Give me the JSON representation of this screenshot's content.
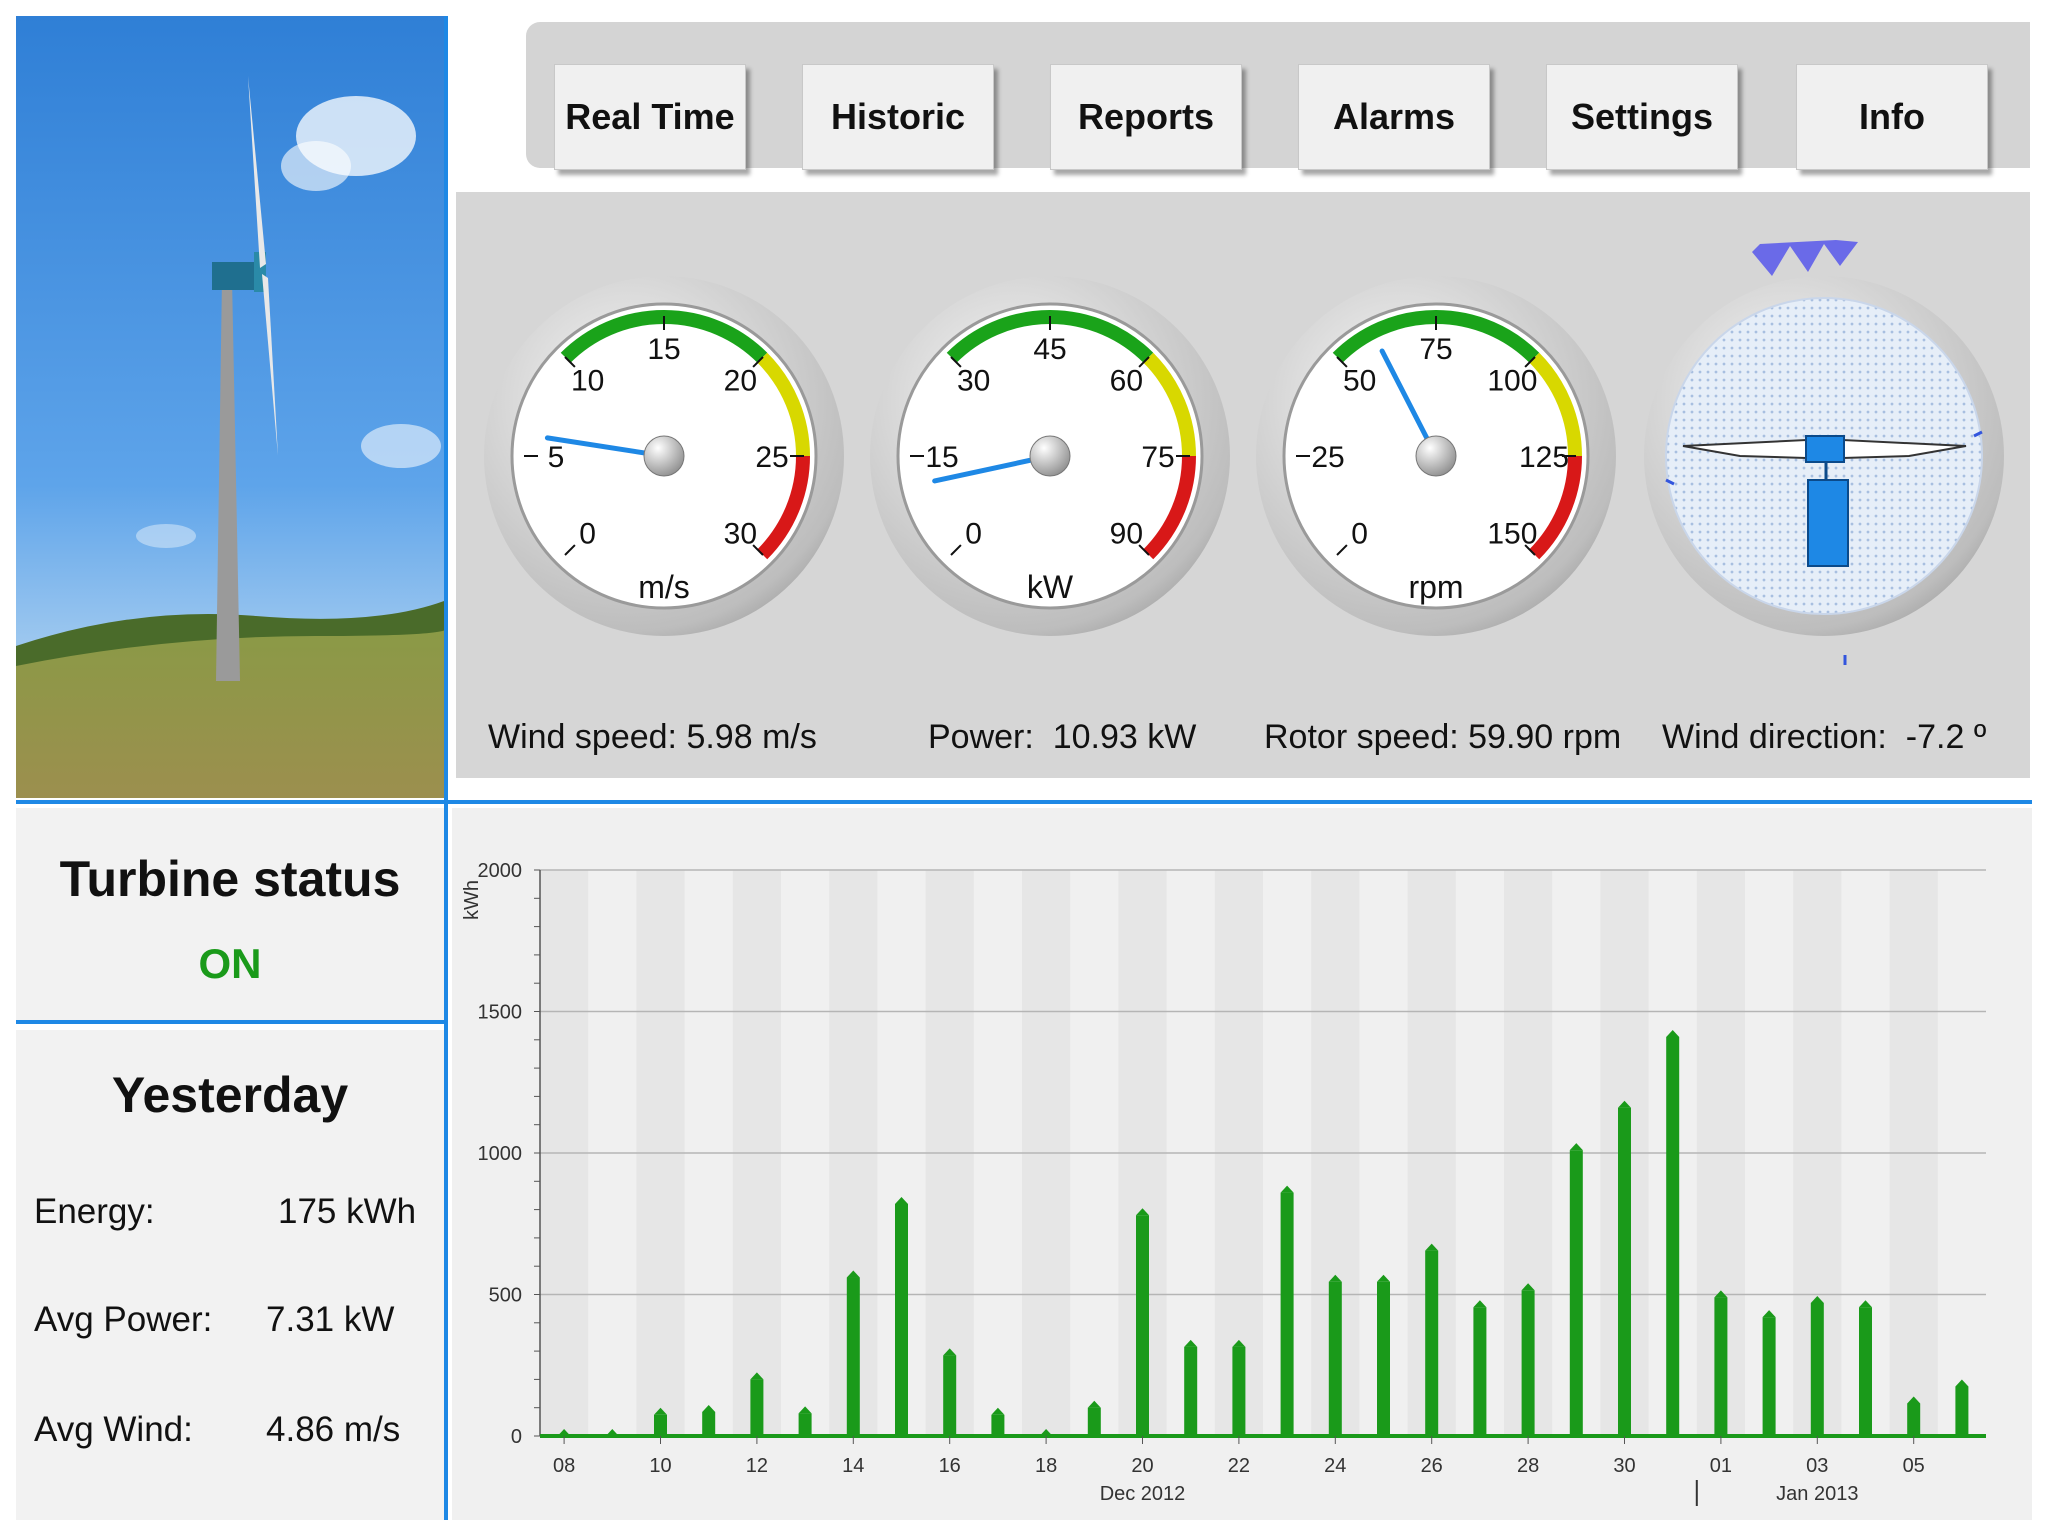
{
  "nav": {
    "items": [
      "Real Time",
      "Historic",
      "Reports",
      "Alarms",
      "Settings",
      "Info"
    ]
  },
  "gauges": {
    "wind": {
      "unit": "m/s",
      "ticks": [
        "0",
        "5",
        "10",
        "15",
        "20",
        "25",
        "30"
      ],
      "value": 5.98,
      "min": 0,
      "max": 30
    },
    "power": {
      "unit": "kW",
      "ticks": [
        "0",
        "15",
        "30",
        "45",
        "60",
        "75",
        "90"
      ],
      "value": 10.93,
      "min": 0,
      "max": 90
    },
    "rotor": {
      "unit": "rpm",
      "ticks": [
        "0",
        "25",
        "50",
        "75",
        "100",
        "125",
        "150"
      ],
      "value": 59.9,
      "min": 0,
      "max": 150
    },
    "direction": {
      "value_deg": -7.2
    }
  },
  "readouts": {
    "wind_label": "Wind speed:",
    "wind_value": "5.98 m/s",
    "power_label": "Power:",
    "power_value": "10.93 kW",
    "rotor_label": "Rotor speed:",
    "rotor_value": "59.90 rpm",
    "direction_label": "Wind direction:",
    "direction_value": "-7.2 º"
  },
  "status": {
    "title": "Turbine status",
    "state": "ON",
    "state_color": "#1a9a1a"
  },
  "yesterday": {
    "title": "Yesterday",
    "energy_label": "Energy:",
    "energy_value": "175 kWh",
    "avg_power_label": "Avg Power:",
    "avg_power_value": "7.31 kW",
    "avg_wind_label": "Avg Wind:",
    "avg_wind_value": "4.86 m/s"
  },
  "chart_data": {
    "type": "bar",
    "ylabel": "kWh",
    "ylim": [
      0,
      2000
    ],
    "yticks": [
      "0",
      "500",
      "1000",
      "1500",
      "2000"
    ],
    "x_tick_labels": [
      "08",
      "10",
      "12",
      "14",
      "16",
      "18",
      "20",
      "22",
      "24",
      "26",
      "28",
      "30",
      "01",
      "03",
      "05"
    ],
    "x_group_labels": [
      "Dec 2012",
      "Jan 2013"
    ],
    "categories": [
      "08",
      "09",
      "10",
      "11",
      "12",
      "13",
      "14",
      "15",
      "16",
      "17",
      "18",
      "19",
      "20",
      "21",
      "22",
      "23",
      "24",
      "25",
      "26",
      "27",
      "28",
      "29",
      "30",
      "31",
      "01",
      "02",
      "03",
      "04",
      "05",
      "06"
    ],
    "values": [
      0,
      0,
      75,
      85,
      200,
      80,
      560,
      820,
      285,
      75,
      0,
      100,
      780,
      315,
      315,
      860,
      545,
      545,
      655,
      455,
      515,
      1010,
      1160,
      1410,
      490,
      420,
      470,
      455,
      115,
      175
    ],
    "bar_color": "#1a9a1a",
    "grid": true
  }
}
